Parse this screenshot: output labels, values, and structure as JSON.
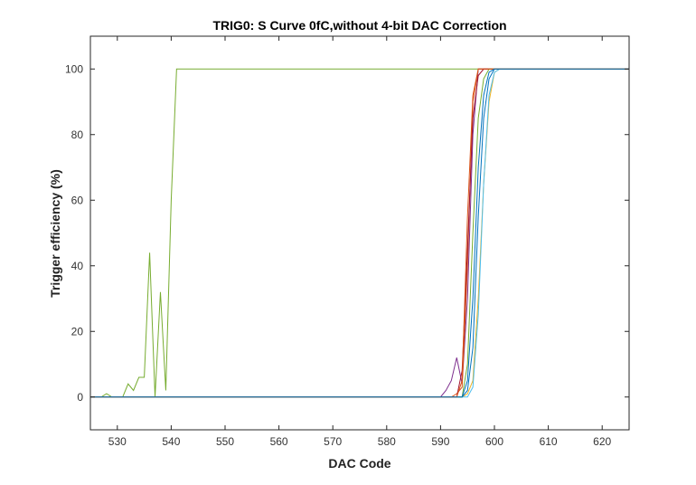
{
  "chart_data": {
    "type": "line",
    "title": "TRIG0: S Curve 0fC,without 4-bit DAC Correction",
    "xlabel": "DAC Code",
    "ylabel": "Trigger efficiency (%)",
    "xlim": [
      525,
      625
    ],
    "ylim": [
      -10,
      110
    ],
    "xticks": [
      530,
      540,
      550,
      560,
      570,
      580,
      590,
      600,
      610,
      620
    ],
    "yticks": [
      0,
      20,
      40,
      60,
      80,
      100
    ],
    "grid": false,
    "legend": "none",
    "series": [
      {
        "color": "#77ac30",
        "x": [
          525,
          526,
          527,
          528,
          529,
          530,
          531,
          532,
          533,
          534,
          535,
          536,
          537,
          538,
          539,
          540,
          541,
          625
        ],
        "y": [
          0,
          0,
          0,
          1,
          0,
          0,
          0,
          4,
          2,
          6,
          6,
          44,
          0,
          32,
          2,
          60,
          100,
          100
        ]
      },
      {
        "color": "#7e2f8e",
        "x": [
          525,
          590,
          591,
          592,
          593,
          594,
          595,
          596,
          597,
          625
        ],
        "y": [
          0,
          0,
          2,
          5,
          12,
          4,
          30,
          80,
          100,
          100
        ]
      },
      {
        "color": "#d95319",
        "x": [
          525,
          592,
          593,
          594,
          595,
          596,
          597,
          598,
          625
        ],
        "y": [
          0,
          0,
          1,
          3,
          40,
          90,
          100,
          100,
          100
        ]
      },
      {
        "color": "#edb120",
        "x": [
          525,
          594,
          595,
          596,
          597,
          598,
          599,
          600,
          601,
          625
        ],
        "y": [
          0,
          0,
          1,
          5,
          30,
          65,
          90,
          99,
          100,
          100
        ]
      },
      {
        "color": "#0072bd",
        "x": [
          525,
          594,
          595,
          596,
          597,
          598,
          599,
          600,
          601,
          625
        ],
        "y": [
          0,
          0,
          2,
          15,
          55,
          85,
          97,
          100,
          100,
          100
        ]
      },
      {
        "color": "#4dbeee",
        "x": [
          525,
          595,
          596,
          597,
          598,
          599,
          600,
          601,
          625
        ],
        "y": [
          0,
          0,
          3,
          25,
          65,
          92,
          99,
          100,
          100
        ]
      },
      {
        "color": "#a2142f",
        "x": [
          525,
          593,
          594,
          595,
          596,
          597,
          598,
          625
        ],
        "y": [
          0,
          0,
          8,
          45,
          85,
          98,
          100,
          100
        ]
      },
      {
        "color": "#77ac30",
        "x": [
          525,
          594,
          595,
          596,
          597,
          598,
          599,
          625
        ],
        "y": [
          0,
          0,
          10,
          50,
          85,
          97,
          100,
          100
        ]
      },
      {
        "color": "#d95319",
        "x": [
          525,
          593,
          594,
          595,
          596,
          597,
          625
        ],
        "y": [
          0,
          0,
          5,
          55,
          92,
          100,
          100
        ]
      },
      {
        "color": "#0072bd",
        "x": [
          525,
          594,
          595,
          596,
          597,
          598,
          599,
          600,
          625
        ],
        "y": [
          0,
          0,
          5,
          30,
          70,
          92,
          99,
          100,
          100
        ]
      }
    ]
  }
}
